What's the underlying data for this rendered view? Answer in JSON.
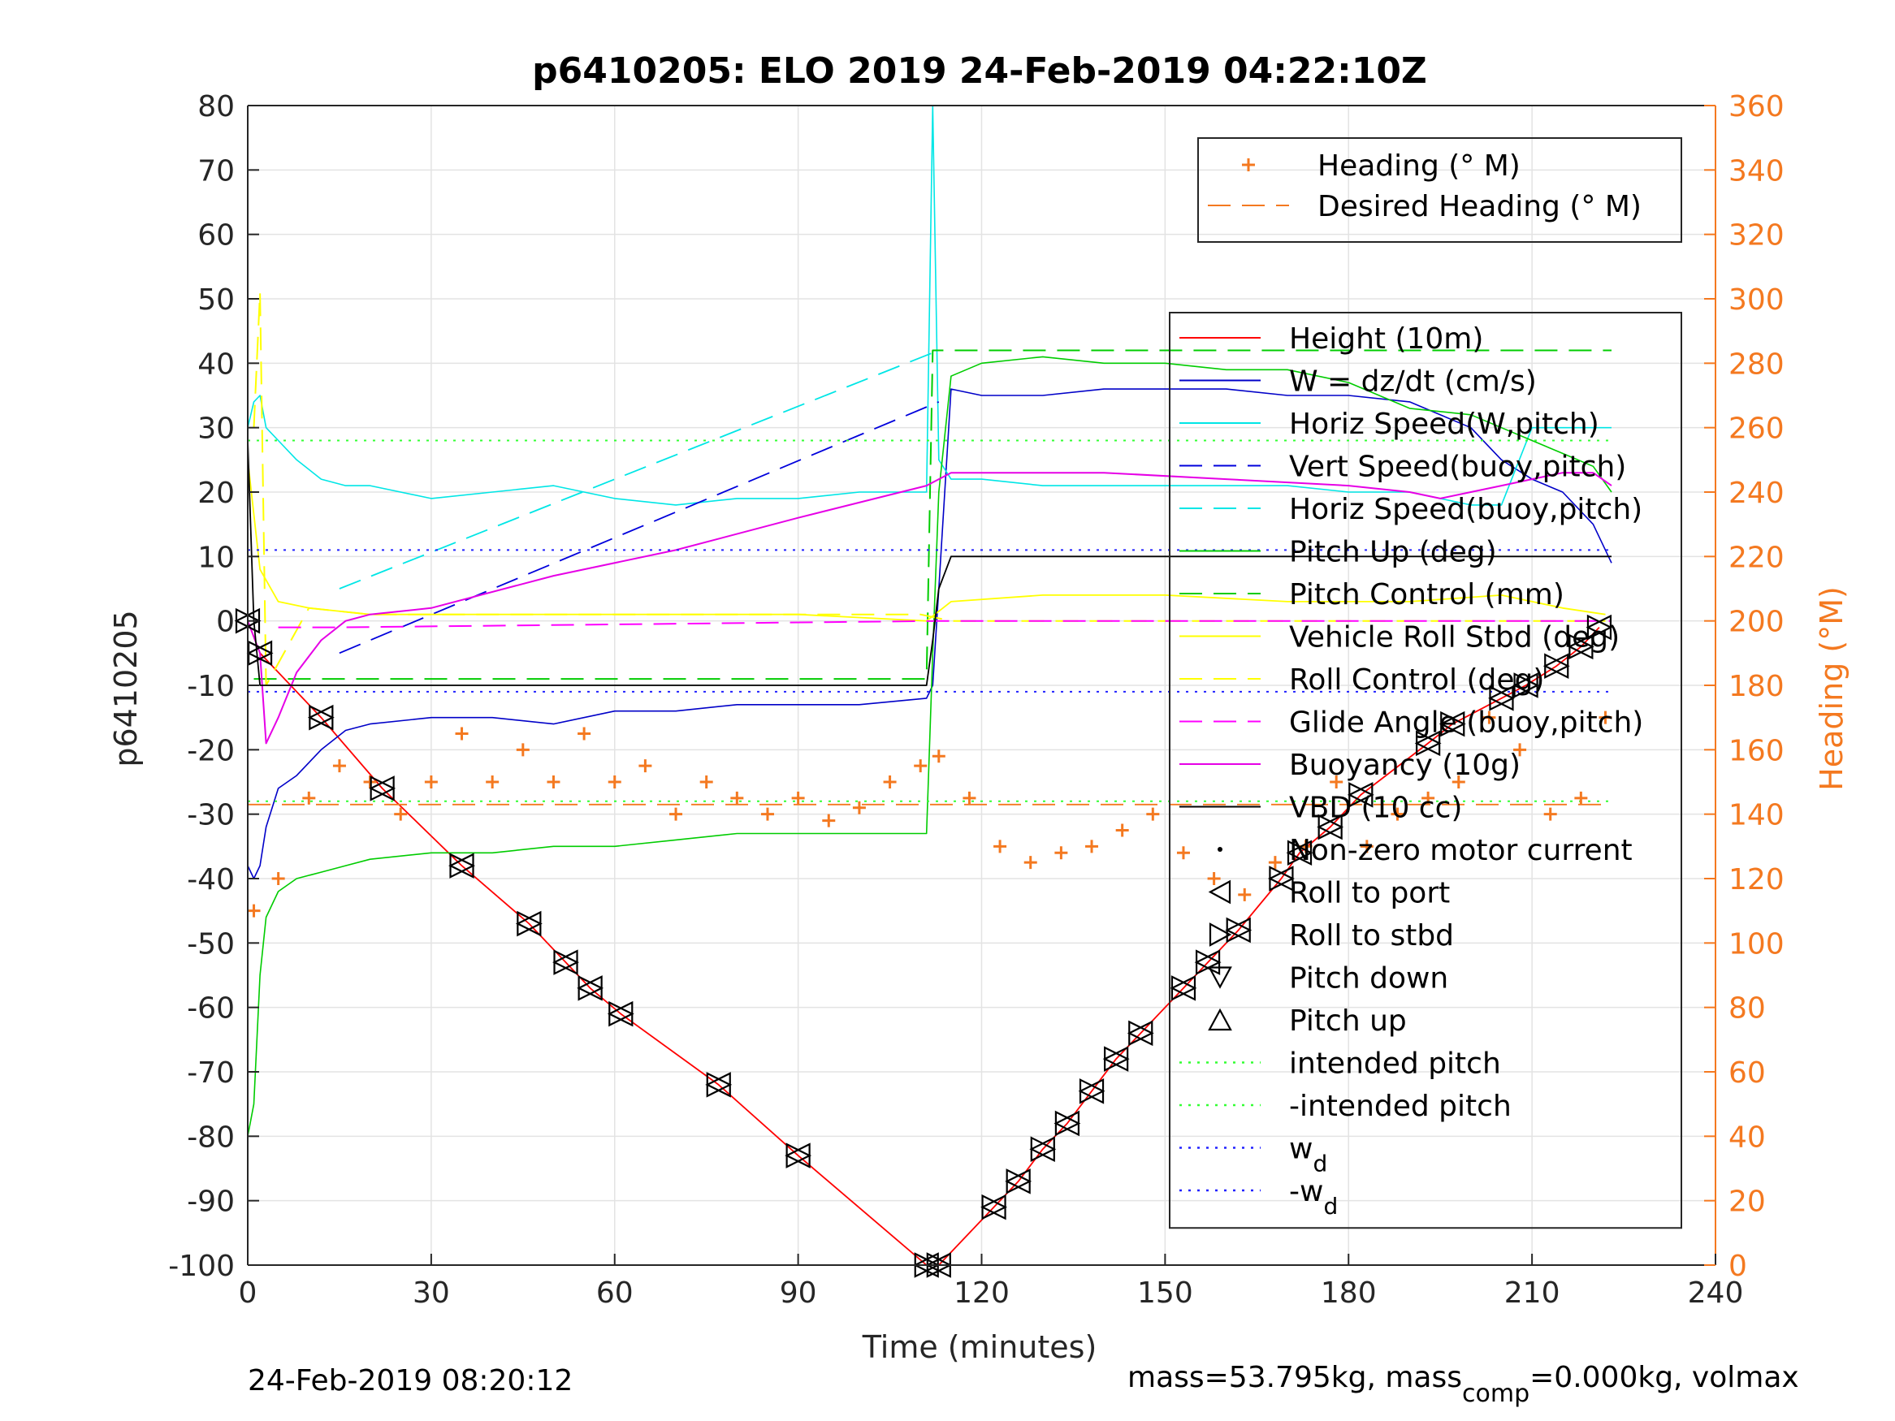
{
  "chart_data": {
    "type": "line",
    "title": "p6410205: ELO 2019 24-Feb-2019 04:22:10Z",
    "xlabel": "Time (minutes)",
    "ylabel": "p6410205",
    "ylabel_right": "Heading (°M)",
    "xlim": [
      0,
      240
    ],
    "ylim": [
      -100,
      80
    ],
    "ylim_right": [
      0,
      360
    ],
    "x_ticks": [
      0,
      30,
      60,
      90,
      120,
      150,
      180,
      210,
      240
    ],
    "y_ticks": [
      -100,
      -90,
      -80,
      -70,
      -60,
      -50,
      -40,
      -30,
      -20,
      -10,
      0,
      10,
      20,
      30,
      40,
      50,
      60,
      70,
      80
    ],
    "y_ticks_right": [
      0,
      20,
      40,
      60,
      80,
      100,
      120,
      140,
      160,
      180,
      200,
      220,
      240,
      260,
      280,
      300,
      320,
      340,
      360
    ],
    "grid": true,
    "colors": {
      "height": "#ff0000",
      "w": "#0000c8",
      "horiz_speed_w": "#00e6e6",
      "vert_speed_buoy": "#0000dc",
      "horiz_speed_buoy": "#00e6e6",
      "pitch_up": "#00cc00",
      "pitch_control": "#00cc00",
      "roll": "#ffff00",
      "roll_control": "#ffff00",
      "glide_angle": "#ff00ff",
      "buoyancy": "#e600e6",
      "vbd": "#000000",
      "heading": "#f47920",
      "intended": "#33ff33",
      "wd": "#2222ff"
    },
    "series": [
      {
        "name": "Height (10m)",
        "x": [
          0,
          2,
          12,
          22,
          35,
          46,
          52,
          56,
          61,
          77,
          90,
          111,
          113,
          122,
          126,
          130,
          134,
          138,
          142,
          146,
          153,
          157,
          162,
          169,
          172,
          177,
          182,
          193,
          197,
          205,
          209,
          214,
          218,
          221
        ],
        "values": [
          0,
          -5,
          -15,
          -26,
          -38,
          -47,
          -53,
          -57,
          -61,
          -72,
          -83,
          -100,
          -100,
          -91,
          -87,
          -82,
          -78,
          -73,
          -68,
          -64,
          -57,
          -53,
          -48,
          -40,
          -36,
          -32,
          -27,
          -19,
          -16,
          -12,
          -10,
          -7,
          -4,
          -1
        ]
      },
      {
        "name": "W = dz/dt (cm/s)",
        "x": [
          0,
          1,
          2,
          3,
          5,
          8,
          12,
          16,
          20,
          30,
          40,
          50,
          60,
          70,
          80,
          90,
          100,
          111,
          112,
          113,
          115,
          120,
          130,
          140,
          150,
          160,
          170,
          180,
          190,
          200,
          205,
          210,
          215,
          220,
          223
        ],
        "values": [
          -38,
          -40,
          -38,
          -32,
          -26,
          -24,
          -20,
          -17,
          -16,
          -15,
          -15,
          -16,
          -14,
          -14,
          -13,
          -13,
          -13,
          -12,
          -10,
          5,
          36,
          35,
          35,
          36,
          36,
          36,
          35,
          35,
          34,
          30,
          25,
          22,
          20,
          15,
          9
        ]
      },
      {
        "name": "Horiz Speed(W,pitch)",
        "x": [
          0,
          1,
          2,
          3,
          5,
          8,
          12,
          16,
          20,
          30,
          40,
          50,
          60,
          70,
          80,
          90,
          100,
          111,
          112,
          113,
          115,
          120,
          130,
          140,
          150,
          160,
          170,
          180,
          190,
          200,
          205,
          210,
          215,
          220,
          223
        ],
        "values": [
          30,
          34,
          35,
          30,
          28,
          25,
          22,
          21,
          21,
          19,
          20,
          21,
          19,
          18,
          19,
          19,
          20,
          20,
          80,
          25,
          22,
          22,
          21,
          21,
          21,
          21,
          21,
          20,
          20,
          18,
          18,
          30,
          30,
          30,
          30
        ]
      },
      {
        "name": "Vert Speed(buoy,pitch)",
        "x": [
          15,
          113
        ],
        "values": [
          -5,
          34
        ]
      },
      {
        "name": "Horiz Speed(buoy,pitch)",
        "x": [
          15,
          113
        ],
        "values": [
          5,
          42
        ]
      },
      {
        "name": "Pitch Up (deg)",
        "x": [
          0,
          1,
          2,
          3,
          5,
          8,
          12,
          16,
          20,
          30,
          40,
          50,
          60,
          70,
          80,
          90,
          100,
          111,
          112,
          113,
          115,
          120,
          130,
          140,
          150,
          160,
          170,
          180,
          190,
          200,
          205,
          210,
          215,
          220,
          223
        ],
        "values": [
          -80,
          -75,
          -55,
          -46,
          -42,
          -40,
          -39,
          -38,
          -37,
          -36,
          -36,
          -35,
          -35,
          -34,
          -33,
          -33,
          -33,
          -33,
          -5,
          20,
          38,
          40,
          41,
          40,
          40,
          39,
          39,
          37,
          33,
          32,
          30,
          28,
          26,
          24,
          20
        ]
      },
      {
        "name": "Pitch Control (mm)",
        "x": [
          1,
          111,
          112,
          223
        ],
        "values": [
          -9,
          -9,
          42,
          42
        ]
      },
      {
        "name": "Vehicle Roll Stbd (deg)",
        "x": [
          0,
          2,
          5,
          10,
          20,
          30,
          50,
          70,
          90,
          111,
          115,
          130,
          150,
          170,
          190,
          205,
          215,
          222
        ],
        "values": [
          25,
          8,
          3,
          2,
          1,
          1,
          1,
          1,
          1,
          0,
          3,
          4,
          4,
          3,
          3,
          4,
          2,
          1
        ]
      },
      {
        "name": "Roll Control (deg)",
        "x": [
          1,
          2,
          3,
          10,
          20,
          30,
          40,
          50,
          60,
          70,
          80,
          90,
          110,
          115,
          130,
          150,
          170,
          190,
          200,
          215,
          222
        ],
        "values": [
          30,
          51,
          -10,
          2,
          1,
          1,
          1,
          1,
          1,
          1,
          1,
          1,
          1,
          0,
          0,
          0,
          0,
          0,
          0,
          0,
          0
        ]
      },
      {
        "name": "Glide Angle (buoy,pitch)",
        "x": [
          5,
          15,
          113,
          223
        ],
        "values": [
          -1,
          -1,
          0,
          0
        ]
      },
      {
        "name": "Buoyancy (10g)",
        "x": [
          0,
          2,
          3,
          5,
          8,
          12,
          16,
          20,
          30,
          50,
          70,
          90,
          111,
          115,
          120,
          140,
          160,
          180,
          190,
          195,
          200,
          205,
          210,
          215,
          220,
          223
        ],
        "values": [
          0,
          -5,
          -19,
          -15,
          -8,
          -3,
          0,
          1,
          2,
          7,
          11,
          16,
          21,
          23,
          23,
          23,
          22,
          21,
          20,
          19,
          20,
          21,
          22,
          23,
          23,
          21
        ]
      },
      {
        "name": "VBD (10 cc)",
        "x": [
          0,
          1,
          2,
          5,
          10,
          111,
          112,
          113,
          115,
          223
        ],
        "values": [
          28,
          0,
          -10,
          -10,
          -10,
          -10,
          -3,
          5,
          10,
          10
        ]
      },
      {
        "name": "Heading (° M)",
        "axis": "right",
        "x": [
          1,
          5,
          10,
          15,
          20,
          25,
          30,
          35,
          40,
          45,
          50,
          55,
          60,
          65,
          70,
          75,
          80,
          85,
          90,
          95,
          100,
          105,
          110,
          113,
          118,
          123,
          128,
          133,
          138,
          143,
          148,
          153,
          158,
          163,
          168,
          173,
          178,
          183,
          188,
          193,
          198,
          203,
          208,
          213,
          218,
          222
        ],
        "values": [
          110,
          120,
          145,
          155,
          150,
          140,
          150,
          165,
          150,
          160,
          150,
          165,
          150,
          155,
          140,
          150,
          145,
          140,
          145,
          138,
          142,
          150,
          155,
          158,
          145,
          130,
          125,
          128,
          130,
          135,
          140,
          128,
          120,
          115,
          125,
          130,
          150,
          130,
          140,
          145,
          150,
          170,
          160,
          140,
          145,
          170
        ]
      },
      {
        "name": "Desired Heading (° M)",
        "axis": "right",
        "x": [
          0,
          223
        ],
        "values": [
          143,
          143
        ]
      },
      {
        "name": "intended pitch",
        "x": [
          0,
          223
        ],
        "values": [
          28,
          28
        ]
      },
      {
        "name": "-intended pitch",
        "x": [
          0,
          223
        ],
        "values": [
          -28,
          -28
        ]
      },
      {
        "name": "w_d",
        "x": [
          0,
          223
        ],
        "values": [
          11,
          11
        ]
      },
      {
        "name": "-w_d",
        "x": [
          0,
          223
        ],
        "values": [
          -11,
          -11
        ]
      }
    ],
    "legend_top": [
      {
        "label": "Heading (° M)",
        "style": "plus",
        "color": "#f47920"
      },
      {
        "label": "Desired Heading (° M)",
        "style": "dashed",
        "color": "#f47920"
      }
    ],
    "legend_main": [
      {
        "label": "Height (10m)",
        "style": "solid",
        "color": "#ff0000"
      },
      {
        "label": "W = dz/dt (cm/s)",
        "style": "solid",
        "color": "#0000c8"
      },
      {
        "label": "Horiz Speed(W,pitch)",
        "style": "solid",
        "color": "#00e6e6"
      },
      {
        "label": "Vert Speed(buoy,pitch)",
        "style": "dashed",
        "color": "#0000dc"
      },
      {
        "label": "Horiz Speed(buoy,pitch)",
        "style": "dashed",
        "color": "#00e6e6"
      },
      {
        "label": "Pitch Up (deg)",
        "style": "solid",
        "color": "#00cc00"
      },
      {
        "label": "Pitch Control (mm)",
        "style": "dashed",
        "color": "#00cc00"
      },
      {
        "label": "Vehicle Roll Stbd (deg)",
        "style": "solid",
        "color": "#ffff00"
      },
      {
        "label": "Roll Control (deg)",
        "style": "dashed",
        "color": "#ffff00"
      },
      {
        "label": "Glide Angle (buoy,pitch)",
        "style": "dashed",
        "color": "#ff00ff"
      },
      {
        "label": "Buoyancy (10g)",
        "style": "solid",
        "color": "#e600e6"
      },
      {
        "label": "VBD (10 cc)",
        "style": "solid",
        "color": "#000000"
      },
      {
        "label": "Non-zero motor current",
        "style": "dot",
        "color": "#000000"
      },
      {
        "label": "Roll to port",
        "style": "tri-left",
        "color": "#000000"
      },
      {
        "label": "Roll to stbd",
        "style": "tri-right",
        "color": "#000000"
      },
      {
        "label": "Pitch down",
        "style": "tri-down",
        "color": "#000000"
      },
      {
        "label": "Pitch up",
        "style": "tri-up",
        "color": "#000000"
      },
      {
        "label": "intended pitch",
        "style": "dotted",
        "color": "#33ff33"
      },
      {
        "label": "-intended pitch",
        "style": "dotted",
        "color": "#33ff33"
      },
      {
        "label": "w",
        "sub": "d",
        "style": "dotted",
        "color": "#2222ff"
      },
      {
        "label": "-w",
        "sub": "d",
        "style": "dotted",
        "color": "#2222ff"
      }
    ]
  },
  "footer": {
    "timestamp": "24-Feb-2019 08:20:12",
    "mass_text_1": "mass=53.795kg, mass",
    "mass_sub": "comp",
    "mass_text_2": "=0.000kg, volmax"
  }
}
